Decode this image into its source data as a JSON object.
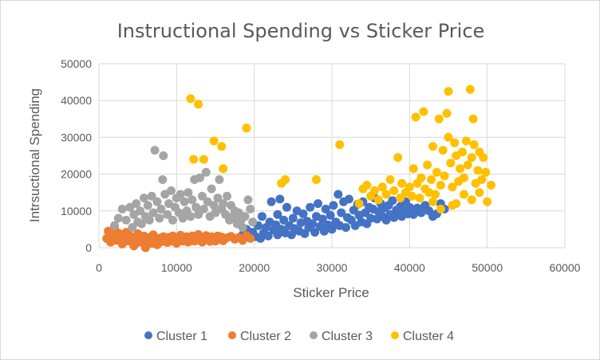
{
  "chart_data": {
    "type": "scatter",
    "title": "Instructional Spending vs Sticker Price",
    "xlabel": "Sticker Price",
    "ylabel": "Intrsuctional Spending",
    "xlim": [
      0,
      60000
    ],
    "ylim": [
      0,
      50000
    ],
    "x_ticks": [
      "0",
      "10000",
      "20000",
      "30000",
      "40000",
      "50000",
      "60000"
    ],
    "y_ticks": [
      "0",
      "10000",
      "20000",
      "30000",
      "40000",
      "50000"
    ],
    "grid": "major gridlines on both axes",
    "legend_position": "bottom",
    "series": [
      {
        "name": "Cluster 1",
        "color": "#4472C4",
        "points": [
          [
            18500,
            3500
          ],
          [
            19000,
            5000
          ],
          [
            19800,
            4200
          ],
          [
            20200,
            3000
          ],
          [
            20500,
            6000
          ],
          [
            20800,
            2500
          ],
          [
            21000,
            8500
          ],
          [
            21200,
            4000
          ],
          [
            21500,
            5500
          ],
          [
            21800,
            3200
          ],
          [
            22000,
            7000
          ],
          [
            22200,
            12500
          ],
          [
            22500,
            4800
          ],
          [
            22800,
            6200
          ],
          [
            23000,
            9000
          ],
          [
            23000,
            3500
          ],
          [
            23300,
            13200
          ],
          [
            23500,
            5000
          ],
          [
            23800,
            7500
          ],
          [
            24000,
            4000
          ],
          [
            24200,
            11000
          ],
          [
            24500,
            6000
          ],
          [
            24800,
            3500
          ],
          [
            25000,
            8000
          ],
          [
            25200,
            5200
          ],
          [
            25500,
            10000
          ],
          [
            25800,
            4500
          ],
          [
            26000,
            6800
          ],
          [
            26300,
            9200
          ],
          [
            26500,
            3800
          ],
          [
            26800,
            7200
          ],
          [
            27000,
            5500
          ],
          [
            27200,
            11000
          ],
          [
            27500,
            6500
          ],
          [
            27800,
            4200
          ],
          [
            28000,
            8500
          ],
          [
            28200,
            12000
          ],
          [
            28500,
            5800
          ],
          [
            28800,
            7800
          ],
          [
            29000,
            4500
          ],
          [
            29200,
            10500
          ],
          [
            29500,
            6200
          ],
          [
            29800,
            8800
          ],
          [
            30000,
            5000
          ],
          [
            30200,
            11500
          ],
          [
            30500,
            7000
          ],
          [
            30800,
            14500
          ],
          [
            31000,
            6000
          ],
          [
            31200,
            9500
          ],
          [
            31500,
            12500
          ],
          [
            31800,
            5500
          ],
          [
            32000,
            8200
          ],
          [
            32200,
            13200
          ],
          [
            32500,
            7500
          ],
          [
            32800,
            10200
          ],
          [
            33000,
            6000
          ],
          [
            33300,
            11800
          ],
          [
            33500,
            8800
          ],
          [
            33800,
            7000
          ],
          [
            34000,
            12500
          ],
          [
            34300,
            9500
          ],
          [
            34500,
            6500
          ],
          [
            34800,
            11000
          ],
          [
            35000,
            8000
          ],
          [
            35300,
            10500
          ],
          [
            35500,
            13500
          ],
          [
            35800,
            7800
          ],
          [
            36000,
            9800
          ],
          [
            36300,
            12000
          ],
          [
            36500,
            8500
          ],
          [
            36800,
            10800
          ],
          [
            37000,
            7500
          ],
          [
            37300,
            11500
          ],
          [
            37500,
            9000
          ],
          [
            37800,
            12800
          ],
          [
            38000,
            8200
          ],
          [
            38300,
            10200
          ],
          [
            38500,
            9500
          ],
          [
            38800,
            11200
          ],
          [
            39000,
            8500
          ],
          [
            39300,
            10000
          ],
          [
            39500,
            12500
          ],
          [
            39800,
            9200
          ],
          [
            40000,
            11000
          ],
          [
            40300,
            10500
          ],
          [
            40500,
            9000
          ],
          [
            41000,
            10800
          ],
          [
            41500,
            9500
          ],
          [
            42000,
            11500
          ],
          [
            42500,
            10000
          ],
          [
            43000,
            8500
          ],
          [
            43500,
            9200
          ],
          [
            44000,
            12000
          ],
          [
            44500,
            10500
          ]
        ]
      },
      {
        "name": "Cluster 2",
        "color": "#ED7D31",
        "points": [
          [
            1000,
            2500
          ],
          [
            1200,
            4500
          ],
          [
            1500,
            1500
          ],
          [
            1800,
            3500
          ],
          [
            2000,
            5500
          ],
          [
            2200,
            2000
          ],
          [
            2500,
            4000
          ],
          [
            2800,
            3000
          ],
          [
            3000,
            1000
          ],
          [
            3200,
            2500
          ],
          [
            3500,
            4200
          ],
          [
            3800,
            1800
          ],
          [
            4000,
            3200
          ],
          [
            4300,
            2200
          ],
          [
            4500,
            500
          ],
          [
            4800,
            2800
          ],
          [
            5000,
            3800
          ],
          [
            5300,
            1500
          ],
          [
            5500,
            2500
          ],
          [
            5800,
            3200
          ],
          [
            6000,
            0
          ],
          [
            6200,
            1800
          ],
          [
            6500,
            2800
          ],
          [
            6800,
            1200
          ],
          [
            7000,
            3500
          ],
          [
            7300,
            2200
          ],
          [
            7500,
            800
          ],
          [
            7800,
            2600
          ],
          [
            8000,
            1600
          ],
          [
            8300,
            3000
          ],
          [
            8500,
            2000
          ],
          [
            8800,
            1400
          ],
          [
            9000,
            2800
          ],
          [
            9300,
            1800
          ],
          [
            9500,
            3200
          ],
          [
            9800,
            2400
          ],
          [
            10000,
            1200
          ],
          [
            10300,
            2600
          ],
          [
            10500,
            3400
          ],
          [
            10800,
            1800
          ],
          [
            11000,
            2500
          ],
          [
            11300,
            3000
          ],
          [
            11500,
            1500
          ],
          [
            11800,
            2200
          ],
          [
            12000,
            3200
          ],
          [
            12300,
            1800
          ],
          [
            12500,
            2600
          ],
          [
            12800,
            3600
          ],
          [
            13000,
            2000
          ],
          [
            13300,
            1500
          ],
          [
            13500,
            2800
          ],
          [
            13800,
            3300
          ],
          [
            14000,
            2200
          ],
          [
            14300,
            1700
          ],
          [
            14500,
            3000
          ],
          [
            14800,
            2500
          ],
          [
            15000,
            1800
          ],
          [
            15300,
            3200
          ],
          [
            15500,
            2400
          ],
          [
            15800,
            2900
          ],
          [
            16000,
            1900
          ],
          [
            16500,
            2700
          ],
          [
            17000,
            3100
          ],
          [
            17500,
            2300
          ],
          [
            18000,
            2800
          ],
          [
            18500,
            2000
          ],
          [
            19000,
            3300
          ],
          [
            19500,
            2500
          ]
        ]
      },
      {
        "name": "Cluster 3",
        "color": "#A5A5A5",
        "points": [
          [
            2000,
            6000
          ],
          [
            2500,
            8000
          ],
          [
            3000,
            10500
          ],
          [
            3500,
            7500
          ],
          [
            4000,
            11000
          ],
          [
            4300,
            5500
          ],
          [
            4500,
            9000
          ],
          [
            4800,
            12000
          ],
          [
            5000,
            7000
          ],
          [
            5300,
            10000
          ],
          [
            5500,
            6500
          ],
          [
            5800,
            13500
          ],
          [
            6000,
            8500
          ],
          [
            6300,
            11500
          ],
          [
            6500,
            7500
          ],
          [
            6800,
            14000
          ],
          [
            7000,
            9500
          ],
          [
            7200,
            26500
          ],
          [
            7500,
            12500
          ],
          [
            7800,
            8000
          ],
          [
            8000,
            10500
          ],
          [
            8200,
            18500
          ],
          [
            8300,
            25000
          ],
          [
            8500,
            14500
          ],
          [
            8800,
            9000
          ],
          [
            9000,
            12000
          ],
          [
            9300,
            15500
          ],
          [
            9500,
            7500
          ],
          [
            9800,
            11000
          ],
          [
            10000,
            13500
          ],
          [
            10300,
            9500
          ],
          [
            10500,
            14500
          ],
          [
            10800,
            8000
          ],
          [
            11000,
            12500
          ],
          [
            11300,
            10000
          ],
          [
            11500,
            15000
          ],
          [
            11800,
            8500
          ],
          [
            12000,
            13000
          ],
          [
            12300,
            18500
          ],
          [
            12500,
            11000
          ],
          [
            12800,
            9000
          ],
          [
            13000,
            19000
          ],
          [
            13300,
            14000
          ],
          [
            13500,
            10500
          ],
          [
            13800,
            20500
          ],
          [
            14000,
            12500
          ],
          [
            14300,
            8500
          ],
          [
            14500,
            16000
          ],
          [
            14800,
            11500
          ],
          [
            15000,
            9500
          ],
          [
            15300,
            13500
          ],
          [
            15500,
            18500
          ],
          [
            15800,
            10500
          ],
          [
            16000,
            12000
          ],
          [
            16300,
            9000
          ],
          [
            16500,
            14000
          ],
          [
            16800,
            7500
          ],
          [
            17000,
            11500
          ],
          [
            17300,
            8500
          ],
          [
            17500,
            10000
          ],
          [
            17800,
            6500
          ],
          [
            18000,
            9500
          ],
          [
            18300,
            7500
          ],
          [
            18500,
            5500
          ],
          [
            18800,
            8500
          ],
          [
            19200,
            13000
          ],
          [
            19500,
            10500
          ],
          [
            19800,
            7000
          ]
        ]
      },
      {
        "name": "Cluster 4",
        "color": "#FFC000",
        "points": [
          [
            11800,
            40500
          ],
          [
            12800,
            39000
          ],
          [
            12200,
            24000
          ],
          [
            13500,
            24000
          ],
          [
            14800,
            29000
          ],
          [
            15800,
            27500
          ],
          [
            16000,
            21500
          ],
          [
            19000,
            32500
          ],
          [
            24000,
            18500
          ],
          [
            23500,
            17500
          ],
          [
            28000,
            18500
          ],
          [
            31000,
            28000
          ],
          [
            33500,
            12000
          ],
          [
            34000,
            16000
          ],
          [
            34500,
            17000
          ],
          [
            35000,
            14000
          ],
          [
            35500,
            15500
          ],
          [
            36000,
            13000
          ],
          [
            36500,
            16500
          ],
          [
            37000,
            14500
          ],
          [
            37500,
            18500
          ],
          [
            38000,
            15500
          ],
          [
            38500,
            24500
          ],
          [
            38800,
            13500
          ],
          [
            39000,
            17500
          ],
          [
            39500,
            15000
          ],
          [
            40000,
            16500
          ],
          [
            40300,
            14000
          ],
          [
            40500,
            21500
          ],
          [
            40800,
            35500
          ],
          [
            41000,
            17500
          ],
          [
            41300,
            13500
          ],
          [
            41500,
            19000
          ],
          [
            41800,
            37000
          ],
          [
            42000,
            16000
          ],
          [
            42300,
            22500
          ],
          [
            42500,
            15000
          ],
          [
            42800,
            18500
          ],
          [
            43000,
            27500
          ],
          [
            43300,
            14500
          ],
          [
            43500,
            20500
          ],
          [
            43800,
            35000
          ],
          [
            44000,
            17000
          ],
          [
            44300,
            26500
          ],
          [
            44500,
            19500
          ],
          [
            44800,
            36500
          ],
          [
            45000,
            42500
          ],
          [
            45000,
            30000
          ],
          [
            45300,
            23000
          ],
          [
            45500,
            16500
          ],
          [
            45800,
            28500
          ],
          [
            46000,
            25000
          ],
          [
            46300,
            18000
          ],
          [
            46500,
            21500
          ],
          [
            46800,
            26000
          ],
          [
            47000,
            19000
          ],
          [
            47300,
            29000
          ],
          [
            47500,
            22500
          ],
          [
            47800,
            43000
          ],
          [
            48000,
            24500
          ],
          [
            48200,
            35000
          ],
          [
            48300,
            28000
          ],
          [
            48500,
            17500
          ],
          [
            48800,
            21000
          ],
          [
            49000,
            26000
          ],
          [
            49300,
            18500
          ],
          [
            49500,
            24500
          ],
          [
            49800,
            20500
          ],
          [
            50000,
            12500
          ],
          [
            50500,
            17000
          ],
          [
            46000,
            12000
          ],
          [
            47000,
            14500
          ],
          [
            48000,
            13000
          ],
          [
            49000,
            15000
          ],
          [
            44000,
            10500
          ],
          [
            45500,
            11500
          ],
          [
            43000,
            12500
          ]
        ]
      }
    ]
  }
}
